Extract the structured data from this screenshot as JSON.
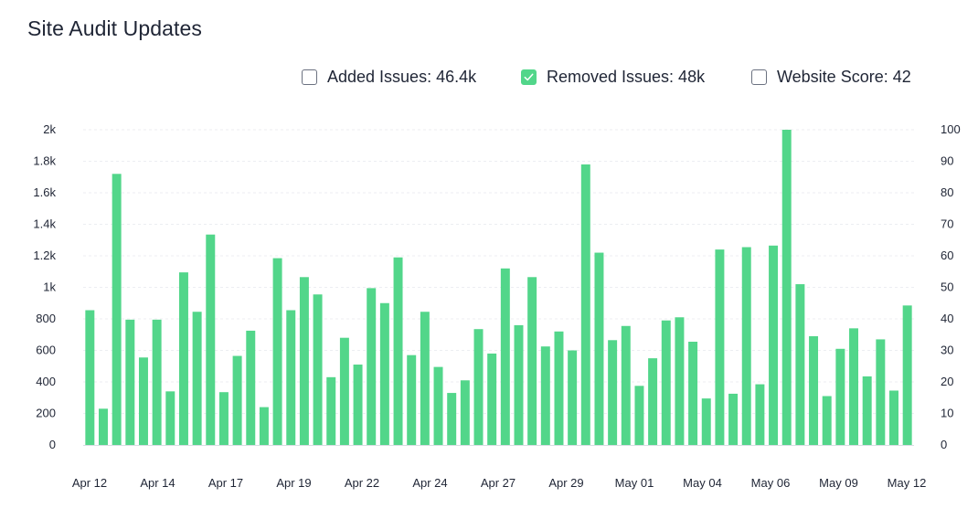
{
  "title": "Site Audit Updates",
  "legend": [
    {
      "label": "Added Issues: 46.4k",
      "checked": false
    },
    {
      "label": "Removed Issues: 48k",
      "checked": true
    },
    {
      "label": "Website Score: 42",
      "checked": false
    }
  ],
  "colors": {
    "bar": "#52d68a",
    "grid": "#eceef2",
    "checkbox_border": "#6b7180"
  },
  "chart_data": {
    "type": "bar",
    "series": [
      {
        "name": "Removed Issues",
        "values": [
          855,
          230,
          1720,
          795,
          555,
          795,
          340,
          1095,
          845,
          1335,
          335,
          565,
          725,
          240,
          1185,
          855,
          1065,
          955,
          430,
          680,
          510,
          995,
          900,
          1190,
          570,
          845,
          495,
          330,
          410,
          735,
          580,
          1120,
          760,
          1065,
          625,
          720,
          600,
          1780,
          1220,
          665,
          755,
          375,
          550,
          790,
          810,
          655,
          295,
          1240,
          325,
          1255,
          385,
          1265,
          2000,
          1020,
          690,
          310,
          610,
          740,
          435,
          670,
          345,
          885
        ]
      }
    ],
    "x_tick_labels": [
      "Apr 12",
      "Apr 14",
      "Apr 17",
      "Apr 19",
      "Apr 22",
      "Apr 24",
      "Apr 27",
      "Apr 29",
      "May 01",
      "May 04",
      "May 06",
      "May 09",
      "May 12"
    ],
    "y_left_ticks": [
      "0",
      "200",
      "400",
      "600",
      "800",
      "1k",
      "1.2k",
      "1.4k",
      "1.6k",
      "1.8k",
      "2k"
    ],
    "y_right_ticks": [
      "0",
      "10",
      "20",
      "30",
      "40",
      "50",
      "60",
      "70",
      "80",
      "90",
      "100"
    ],
    "ylim_left": [
      0,
      2000
    ],
    "ylim_right": [
      0,
      100
    ],
    "grid": true,
    "legend_position": "top-right"
  }
}
